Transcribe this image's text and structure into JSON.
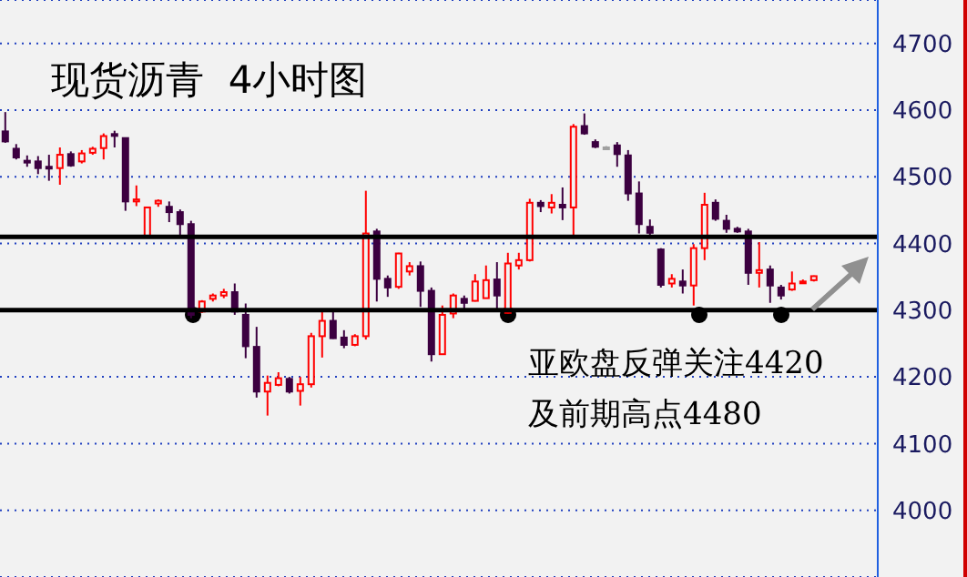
{
  "chart_data": {
    "type": "candlestick",
    "title": "现货沥青  4小时图",
    "annotations": [
      "亚欧盘反弹关注4420",
      "及前期高点4480"
    ],
    "categories": [
      null,
      null,
      null,
      null,
      null,
      null,
      null,
      null,
      null,
      null,
      null,
      null,
      null,
      null,
      null,
      null,
      null,
      null,
      null,
      null,
      null,
      null,
      null,
      null,
      null,
      null,
      null,
      null,
      null,
      null,
      null,
      null,
      null,
      null,
      null,
      null,
      null,
      null,
      null,
      null,
      null,
      null,
      null,
      null,
      null,
      null,
      null,
      null,
      null,
      null,
      null,
      null,
      null,
      null,
      null,
      null,
      null,
      null,
      null,
      null,
      null,
      null,
      null,
      null,
      null,
      null,
      null,
      null,
      null,
      null,
      null,
      null,
      null,
      null,
      null
    ],
    "ohlc": [
      [
        4568,
        4597,
        4551,
        4553
      ],
      [
        4542,
        4549,
        4526,
        4529
      ],
      [
        4524,
        4532,
        4515,
        4522
      ],
      [
        4523,
        4531,
        4504,
        4513
      ],
      [
        4515,
        4533,
        4494,
        4513
      ],
      [
        4513,
        4544,
        4488,
        4533
      ],
      [
        4534,
        4538,
        4515,
        4517
      ],
      [
        4523,
        4540,
        4520,
        4535
      ],
      [
        4536,
        4545,
        4533,
        4542
      ],
      [
        4543,
        4565,
        4526,
        4561
      ],
      [
        4564,
        4569,
        4544,
        4562
      ],
      [
        4558,
        4559,
        4449,
        4463
      ],
      [
        4463,
        4487,
        4456,
        4466
      ],
      [
        4409,
        4455,
        4408,
        4454
      ],
      [
        4460,
        4466,
        4455,
        4464
      ],
      [
        4455,
        4463,
        4432,
        4447
      ],
      [
        4447,
        4451,
        4411,
        4429
      ],
      [
        4429,
        4434,
        4288,
        4293
      ],
      [
        4298,
        4315,
        4296,
        4313
      ],
      [
        4317,
        4325,
        4313,
        4322
      ],
      [
        4322,
        4332,
        4318,
        4327
      ],
      [
        4327,
        4340,
        4293,
        4298
      ],
      [
        4293,
        4310,
        4228,
        4246
      ],
      [
        4245,
        4275,
        4169,
        4178
      ],
      [
        4178,
        4202,
        4142,
        4191
      ],
      [
        4188,
        4207,
        4186,
        4198
      ],
      [
        4197,
        4200,
        4175,
        4178
      ],
      [
        4179,
        4200,
        4157,
        4189
      ],
      [
        4189,
        4266,
        4184,
        4261
      ],
      [
        4261,
        4297,
        4229,
        4284
      ],
      [
        4284,
        4302,
        4257,
        4258
      ],
      [
        4259,
        4270,
        4243,
        4248
      ],
      [
        4248,
        4264,
        4246,
        4261
      ],
      [
        4261,
        4479,
        4256,
        4415
      ],
      [
        4418,
        4422,
        4313,
        4347
      ],
      [
        4347,
        4352,
        4320,
        4334
      ],
      [
        4335,
        4386,
        4332,
        4385
      ],
      [
        4358,
        4372,
        4352,
        4366
      ],
      [
        4366,
        4373,
        4305,
        4329
      ],
      [
        4329,
        4334,
        4223,
        4234
      ],
      [
        4234,
        4307,
        4234,
        4293
      ],
      [
        4295,
        4325,
        4288,
        4322
      ],
      [
        4317,
        4322,
        4302,
        4311
      ],
      [
        4314,
        4354,
        4313,
        4343
      ],
      [
        4318,
        4367,
        4318,
        4345
      ],
      [
        4346,
        4372,
        4297,
        4322
      ],
      [
        4296,
        4386,
        4295,
        4370
      ],
      [
        4367,
        4386,
        4361,
        4375
      ],
      [
        4375,
        4467,
        4373,
        4461
      ],
      [
        4461,
        4465,
        4447,
        4456
      ],
      [
        4454,
        4474,
        4445,
        4461
      ],
      [
        4458,
        4484,
        4435,
        4454
      ],
      [
        4454,
        4579,
        4411,
        4575
      ],
      [
        4576,
        4595,
        4563,
        4565
      ],
      [
        4552,
        4556,
        4543,
        4545
      ],
      [
        4544,
        4546,
        4542,
        4543
      ],
      [
        4547,
        4552,
        4515,
        4534
      ],
      [
        4532,
        4540,
        4464,
        4475
      ],
      [
        4475,
        4493,
        4415,
        4429
      ],
      [
        4425,
        4436,
        4411,
        4416
      ],
      [
        4391,
        4393,
        4334,
        4338
      ],
      [
        4340,
        4354,
        4334,
        4347
      ],
      [
        4343,
        4361,
        4325,
        4337
      ],
      [
        4337,
        4399,
        4307,
        4393
      ],
      [
        4393,
        4476,
        4375,
        4458
      ],
      [
        4461,
        4466,
        4434,
        4437
      ],
      [
        4434,
        4443,
        4416,
        4422
      ],
      [
        4422,
        4425,
        4416,
        4418
      ],
      [
        4418,
        4422,
        4338,
        4356
      ],
      [
        4356,
        4402,
        4334,
        4360
      ],
      [
        4361,
        4367,
        4311,
        4337
      ],
      [
        4334,
        4338,
        4316,
        4322
      ],
      [
        4331,
        4358,
        4329,
        4340
      ],
      [
        4341,
        4346,
        4340,
        4343
      ],
      [
        4345,
        4352,
        4343,
        4351
      ]
    ],
    "colors": [
      "#3c0040",
      "#3c0040",
      "#3c0040",
      "#3c0040",
      "#3c0040",
      "#ff0000",
      "#3c0040",
      "#ff0000",
      "#ff0000",
      "#ff0000",
      "#3c0040",
      "#3c0040",
      "#ff0000",
      "#ff0000",
      "#ff0000",
      "#3c0040",
      "#3c0040",
      "#3c0040",
      "#ff0000",
      "#ff0000",
      "#ff0000",
      "#3c0040",
      "#3c0040",
      "#3c0040",
      "#ff0000",
      "#ff0000",
      "#3c0040",
      "#ff0000",
      "#ff0000",
      "#ff0000",
      "#3c0040",
      "#3c0040",
      "#ff0000",
      "#ff0000",
      "#3c0040",
      "#3c0040",
      "#ff0000",
      "#ff0000",
      "#3c0040",
      "#3c0040",
      "#ff0000",
      "#ff0000",
      "#3c0040",
      "#ff0000",
      "#ff0000",
      "#3c0040",
      "#ff0000",
      "#ff0000",
      "#ff0000",
      "#3c0040",
      "#ff0000",
      "#3c0040",
      "#ff0000",
      "#3c0040",
      "#3c0040",
      "#a0a0a0",
      "#3c0040",
      "#3c0040",
      "#3c0040",
      "#3c0040",
      "#3c0040",
      "#ff0000",
      "#3c0040",
      "#ff0000",
      "#ff0000",
      "#3c0040",
      "#3c0040",
      "#3c0040",
      "#3c0040",
      "#ff0000",
      "#3c0040",
      "#3c0040",
      "#ff0000",
      "#ff0000",
      "#ff0000"
    ],
    "ylim": [
      3900,
      4765
    ],
    "yticks": [
      4000,
      4100,
      4200,
      4300,
      4400,
      4500,
      4600,
      4700
    ],
    "grid": "y",
    "ref_lines": [
      {
        "axis": "y",
        "value": 4410,
        "color": "#000000"
      },
      {
        "axis": "y",
        "value": 4300,
        "color": "#000000"
      }
    ]
  }
}
